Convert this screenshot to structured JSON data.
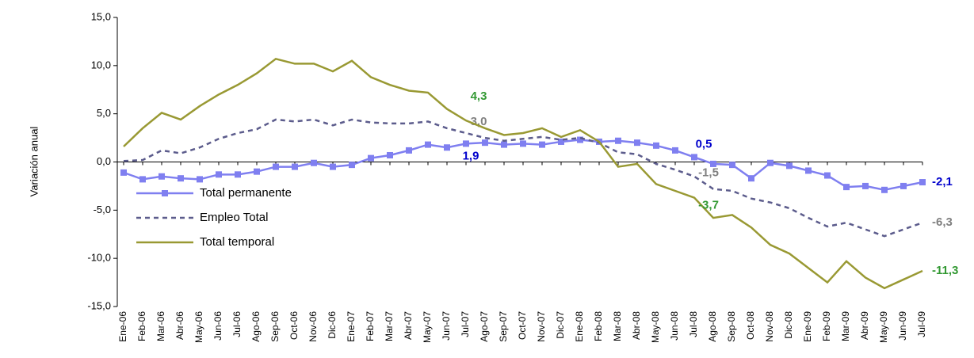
{
  "chart_data": {
    "type": "line",
    "y_label": "Variación anual",
    "categories": [
      "Ene-06",
      "Feb-06",
      "Mar-06",
      "Abr-06",
      "May-06",
      "Jun-06",
      "Jul-06",
      "Ago-06",
      "Sep-06",
      "Oct-06",
      "Nov-06",
      "Dic-06",
      "Ene-07",
      "Feb-07",
      "Mar-07",
      "Abr-07",
      "May-07",
      "Jun-07",
      "Jul-07",
      "Ago-07",
      "Sep-07",
      "Oct-07",
      "Nov-07",
      "Dic-07",
      "Ene-08",
      "Feb-08",
      "Mar-08",
      "Abr-08",
      "May-08",
      "Jun-08",
      "Jul-08",
      "Ago-08",
      "Sep-08",
      "Oct-08",
      "Nov-08",
      "Dic-08",
      "Ene-09",
      "Feb-09",
      "Mar-09",
      "Abr-09",
      "May-09",
      "Jun-09",
      "Jul-09"
    ],
    "series": [
      {
        "name": "Total permanente",
        "color": "#7f7ff0",
        "label_color": "#0000cc",
        "marker": "square",
        "dash": false,
        "values": [
          -1.1,
          -1.8,
          -1.5,
          -1.7,
          -1.8,
          -1.3,
          -1.3,
          -1.0,
          -0.5,
          -0.5,
          -0.1,
          -0.5,
          -0.3,
          0.4,
          0.7,
          1.2,
          1.8,
          1.5,
          1.9,
          2.0,
          1.8,
          1.9,
          1.8,
          2.1,
          2.3,
          2.1,
          2.2,
          2.0,
          1.7,
          1.2,
          0.5,
          -0.2,
          -0.3,
          -1.7,
          -0.1,
          -0.4,
          -0.9,
          -1.4,
          -2.6,
          -2.5,
          -2.9,
          -2.5,
          -2.1
        ],
        "value_labels": [
          null,
          null,
          null,
          null,
          null,
          null,
          null,
          null,
          null,
          null,
          null,
          null,
          null,
          null,
          null,
          null,
          null,
          null,
          "1,9",
          null,
          null,
          null,
          null,
          null,
          null,
          null,
          null,
          null,
          null,
          null,
          "0,5",
          null,
          null,
          null,
          null,
          null,
          null,
          null,
          null,
          null,
          null,
          null,
          "-2,1"
        ]
      },
      {
        "name": "Empleo Total",
        "color": "#5c5c8c",
        "label_color": "#808080",
        "marker": "none",
        "dash": true,
        "values": [
          0.1,
          0.2,
          1.2,
          0.9,
          1.5,
          2.4,
          3.0,
          3.4,
          4.4,
          4.2,
          4.4,
          3.8,
          4.4,
          4.1,
          4.0,
          4.0,
          4.2,
          3.5,
          3.0,
          2.5,
          2.2,
          2.4,
          2.6,
          2.3,
          2.5,
          2.0,
          1.0,
          0.8,
          -0.2,
          -0.8,
          -1.5,
          -2.8,
          -3.0,
          -3.8,
          -4.2,
          -4.8,
          -5.8,
          -6.7,
          -6.3,
          -7.0,
          -7.7,
          -7.0,
          -6.3
        ],
        "value_labels": [
          null,
          null,
          null,
          null,
          null,
          null,
          null,
          null,
          null,
          null,
          null,
          null,
          null,
          null,
          null,
          null,
          null,
          null,
          "3,0",
          null,
          null,
          null,
          null,
          null,
          null,
          null,
          null,
          null,
          null,
          null,
          "-1,5",
          null,
          null,
          null,
          null,
          null,
          null,
          null,
          null,
          null,
          null,
          null,
          "-6,3"
        ]
      },
      {
        "name": "Total temporal",
        "color": "#999933",
        "label_color": "#339933",
        "marker": "none",
        "dash": false,
        "values": [
          1.6,
          3.5,
          5.1,
          4.4,
          5.8,
          7.0,
          8.0,
          9.2,
          10.7,
          10.2,
          10.2,
          9.4,
          10.5,
          8.8,
          8.0,
          7.4,
          7.2,
          5.5,
          4.3,
          3.5,
          2.8,
          3.0,
          3.5,
          2.6,
          3.3,
          2.1,
          -0.5,
          -0.2,
          -2.3,
          -3.0,
          -3.7,
          -5.8,
          -5.5,
          -6.8,
          -8.6,
          -9.5,
          -11.0,
          -12.5,
          -10.3,
          -12.0,
          -13.1,
          -12.2,
          -11.3
        ],
        "value_labels": [
          null,
          null,
          null,
          null,
          null,
          null,
          null,
          null,
          null,
          null,
          null,
          null,
          null,
          null,
          null,
          null,
          null,
          null,
          "4,3",
          null,
          null,
          null,
          null,
          null,
          null,
          null,
          null,
          null,
          null,
          null,
          "-3,7",
          null,
          null,
          null,
          null,
          null,
          null,
          null,
          null,
          null,
          null,
          null,
          "-11,3"
        ]
      }
    ],
    "ylim": [
      -15,
      15
    ],
    "yticks": [
      {
        "value": -15,
        "label": "-15,0"
      },
      {
        "value": -10,
        "label": "-10,0"
      },
      {
        "value": -5,
        "label": "-5,0"
      },
      {
        "value": 0,
        "label": "0,0"
      },
      {
        "value": 5,
        "label": "5,0"
      },
      {
        "value": 10,
        "label": "10,0"
      },
      {
        "value": 15,
        "label": "15,0"
      }
    ],
    "grid": false,
    "legend": "left"
  }
}
